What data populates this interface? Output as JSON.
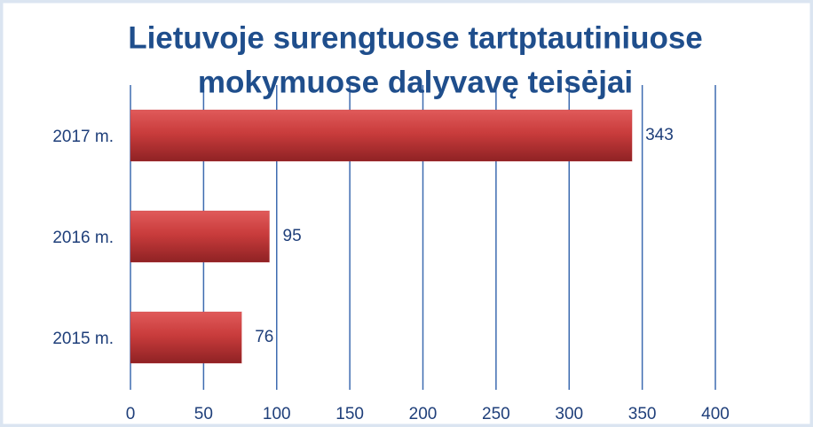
{
  "chart_data": {
    "type": "bar",
    "orientation": "horizontal",
    "title": [
      "Lietuvoje surengtuose tartptautiniuose",
      "mokymuose dalyvavę teisėjai"
    ],
    "categories": [
      "2017 m.",
      "2016 m.",
      "2015 m."
    ],
    "values": [
      343,
      95,
      76
    ],
    "color": "#c0393b",
    "xlim": [
      0,
      400
    ],
    "xticks": [
      0,
      50,
      100,
      150,
      200,
      250,
      300,
      350,
      400
    ],
    "grid": true
  }
}
